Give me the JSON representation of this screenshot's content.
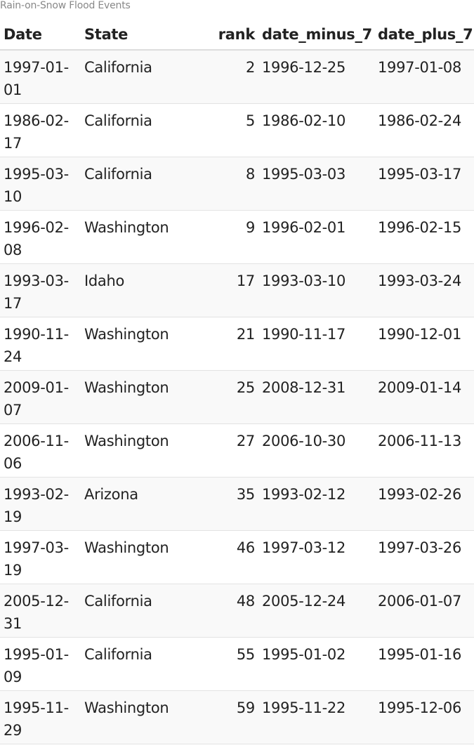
{
  "caption": "Rain-on-Snow Flood Events",
  "columns": {
    "date": "Date",
    "state": "State",
    "rank": "rank",
    "date_minus_7": "date_minus_7",
    "date_plus_7": "date_plus_7"
  },
  "rows": [
    {
      "date": "1997-01-01",
      "state": "California",
      "rank": "2",
      "date_minus_7": "1996-12-25",
      "date_plus_7": "1997-01-08"
    },
    {
      "date": "1986-02-17",
      "state": "California",
      "rank": "5",
      "date_minus_7": "1986-02-10",
      "date_plus_7": "1986-02-24"
    },
    {
      "date": "1995-03-10",
      "state": "California",
      "rank": "8",
      "date_minus_7": "1995-03-03",
      "date_plus_7": "1995-03-17"
    },
    {
      "date": "1996-02-08",
      "state": "Washington",
      "rank": "9",
      "date_minus_7": "1996-02-01",
      "date_plus_7": "1996-02-15"
    },
    {
      "date": "1993-03-17",
      "state": "Idaho",
      "rank": "17",
      "date_minus_7": "1993-03-10",
      "date_plus_7": "1993-03-24"
    },
    {
      "date": "1990-11-24",
      "state": "Washington",
      "rank": "21",
      "date_minus_7": "1990-11-17",
      "date_plus_7": "1990-12-01"
    },
    {
      "date": "2009-01-07",
      "state": "Washington",
      "rank": "25",
      "date_minus_7": "2008-12-31",
      "date_plus_7": "2009-01-14"
    },
    {
      "date": "2006-11-06",
      "state": "Washington",
      "rank": "27",
      "date_minus_7": "2006-10-30",
      "date_plus_7": "2006-11-13"
    },
    {
      "date": "1993-02-19",
      "state": "Arizona",
      "rank": "35",
      "date_minus_7": "1993-02-12",
      "date_plus_7": "1993-02-26"
    },
    {
      "date": "1997-03-19",
      "state": "Washington",
      "rank": "46",
      "date_minus_7": "1997-03-12",
      "date_plus_7": "1997-03-26"
    },
    {
      "date": "2005-12-31",
      "state": "California",
      "rank": "48",
      "date_minus_7": "2005-12-24",
      "date_plus_7": "2006-01-07"
    },
    {
      "date": "1995-01-09",
      "state": "California",
      "rank": "55",
      "date_minus_7": "1995-01-02",
      "date_plus_7": "1995-01-16"
    },
    {
      "date": "1995-11-29",
      "state": "Washington",
      "rank": "59",
      "date_minus_7": "1995-11-22",
      "date_plus_7": "1995-12-06"
    }
  ]
}
